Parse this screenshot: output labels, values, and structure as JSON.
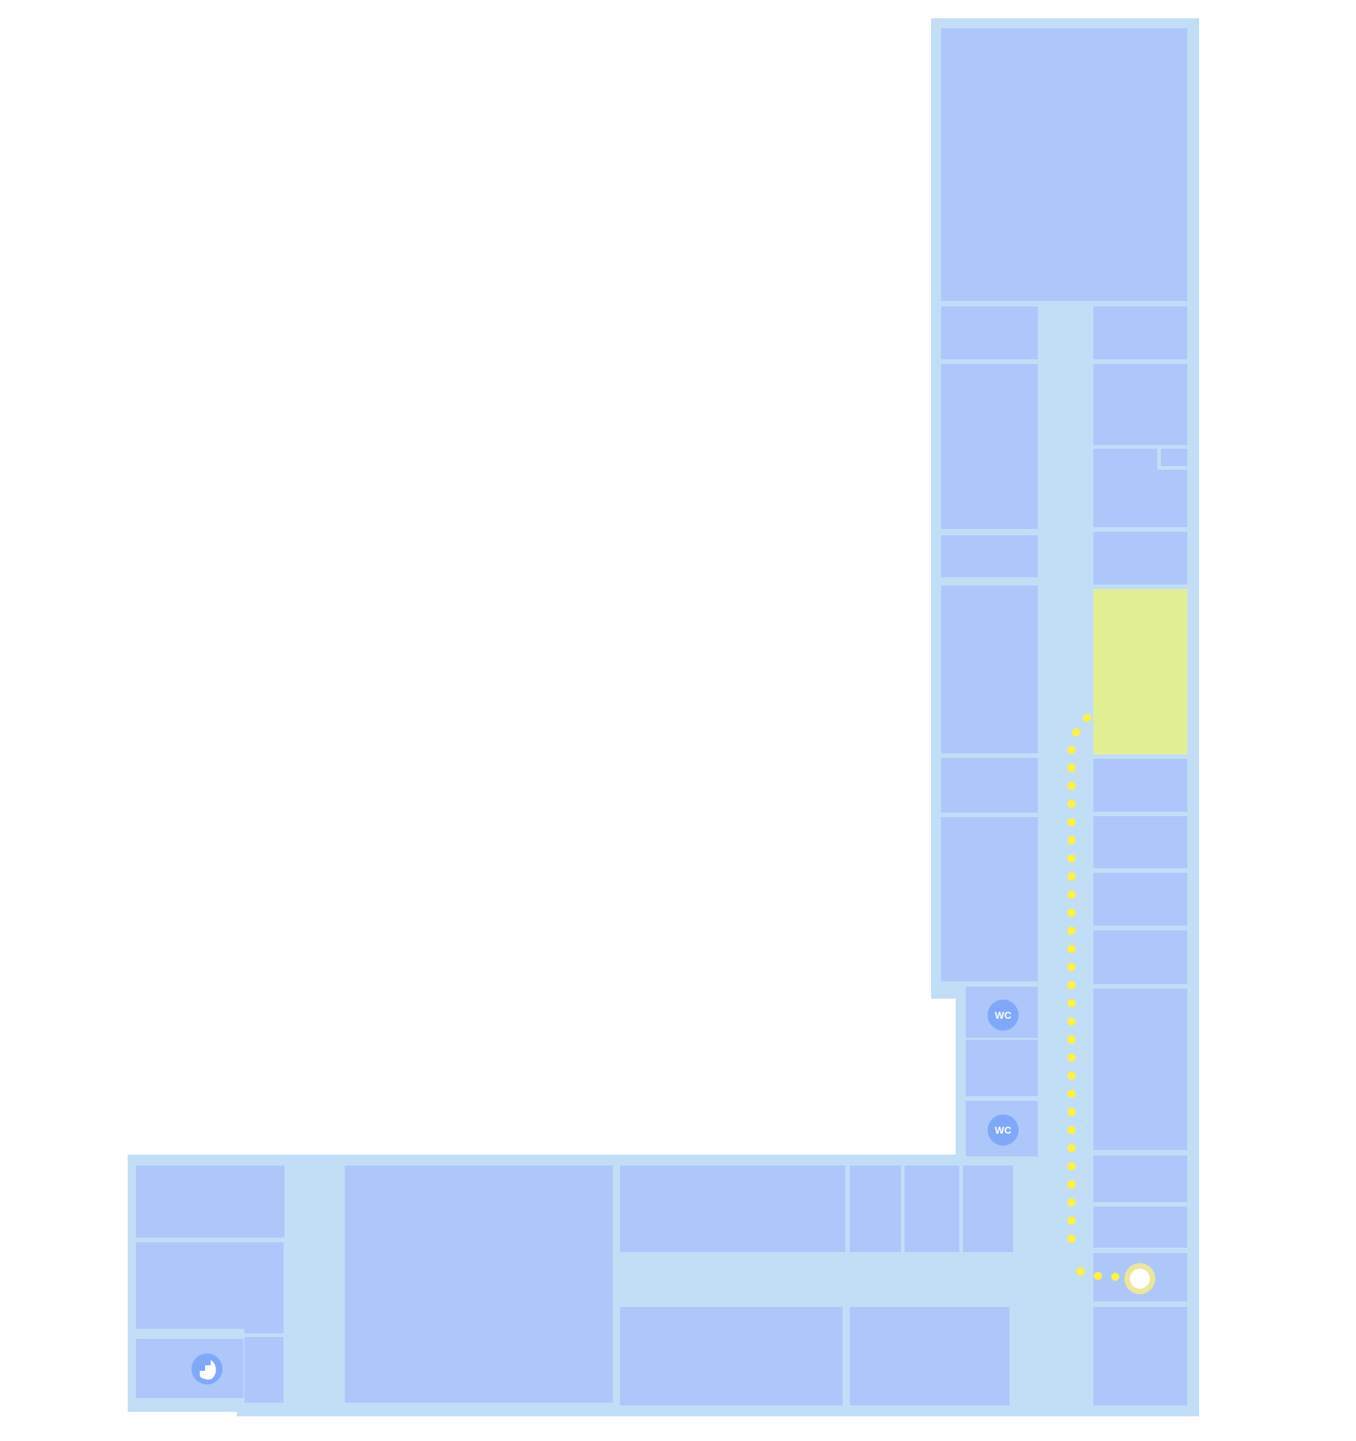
{
  "map": {
    "colors": {
      "background": "#ffffff",
      "corridor": "#c2def6",
      "room": "#adc7fb",
      "highlighted_room": "#e2ef93",
      "route_dots": "#fff23a",
      "marker_ring": "#ece69a",
      "marker_core": "#ffffff",
      "poi_circle": "#7fa8f8",
      "poi_text": "#ffffff"
    },
    "destination": {
      "state": "highlighted"
    },
    "route": {
      "style": "dotted"
    },
    "user_location": {
      "icon": "location-dot"
    },
    "pois": [
      {
        "type": "restroom",
        "label": "WC"
      },
      {
        "type": "restroom",
        "label": "WC"
      },
      {
        "type": "stairs",
        "icon": "stairs-icon"
      }
    ]
  }
}
